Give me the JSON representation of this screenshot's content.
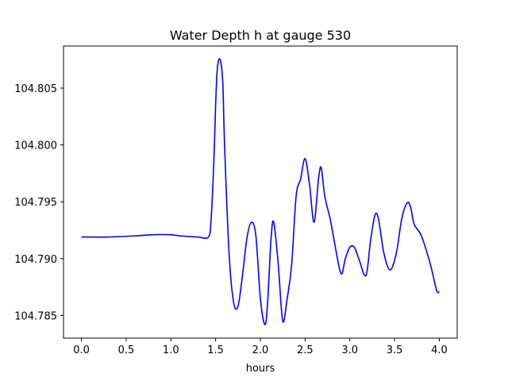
{
  "chart_data": {
    "type": "line",
    "title": "Water Depth h at gauge 530",
    "xlabel": "hours",
    "ylabel": "",
    "xlim": [
      -0.2,
      4.2
    ],
    "ylim": [
      104.783,
      104.8087
    ],
    "x_ticks": [
      0.0,
      0.5,
      1.0,
      1.5,
      2.0,
      2.5,
      3.0,
      3.5,
      4.0
    ],
    "x_tick_labels": [
      "0.0",
      "0.5",
      "1.0",
      "1.5",
      "2.0",
      "2.5",
      "3.0",
      "3.5",
      "4.0"
    ],
    "y_ticks": [
      104.785,
      104.79,
      104.795,
      104.8,
      104.805
    ],
    "y_tick_labels": [
      "104.785",
      "104.790",
      "104.795",
      "104.800",
      "104.805"
    ],
    "grid": false,
    "series": [
      {
        "color": "#0000ff",
        "x": [
          0.0,
          0.3,
          0.6,
          0.8,
          1.0,
          1.1,
          1.3,
          1.42,
          1.45,
          1.48,
          1.5,
          1.52,
          1.55,
          1.58,
          1.6,
          1.65,
          1.7,
          1.75,
          1.8,
          1.85,
          1.9,
          1.95,
          2.0,
          2.05,
          2.08,
          2.12,
          2.15,
          2.2,
          2.25,
          2.3,
          2.35,
          2.4,
          2.45,
          2.5,
          2.55,
          2.6,
          2.65,
          2.68,
          2.72,
          2.78,
          2.82,
          2.9,
          2.95,
          3.0,
          3.05,
          3.1,
          3.18,
          3.23,
          3.28,
          3.32,
          3.38,
          3.45,
          3.52,
          3.58,
          3.64,
          3.68,
          3.72,
          3.8,
          3.9,
          3.97,
          4.0
        ],
        "y": [
          104.7919,
          104.7919,
          104.792,
          104.7921,
          104.7921,
          104.792,
          104.7919,
          104.7919,
          104.7935,
          104.7985,
          104.8035,
          104.8068,
          104.8075,
          104.8055,
          104.8,
          104.7905,
          104.7862,
          104.7858,
          104.7885,
          104.7918,
          104.7932,
          104.792,
          104.7865,
          104.7842,
          104.786,
          104.7918,
          104.7932,
          104.7895,
          104.7845,
          104.7865,
          104.7895,
          104.7955,
          104.797,
          104.7988,
          104.7965,
          104.7932,
          104.797,
          104.798,
          104.7955,
          104.7935,
          104.7918,
          104.7887,
          104.79,
          104.791,
          104.791,
          104.79,
          104.7885,
          104.7915,
          104.7938,
          104.7935,
          104.7905,
          104.789,
          104.7905,
          104.7935,
          104.7949,
          104.7945,
          104.793,
          104.792,
          104.7895,
          104.7872,
          104.7871
        ]
      }
    ]
  }
}
